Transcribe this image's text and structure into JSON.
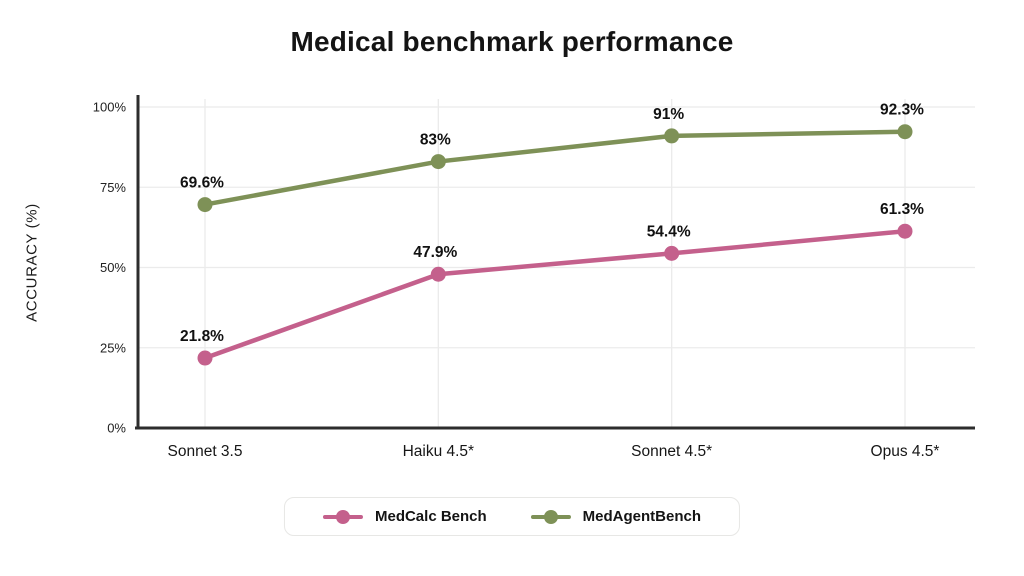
{
  "title": "Medical benchmark performance",
  "chart_data": {
    "type": "line",
    "title": "Medical benchmark performance",
    "categories": [
      "Sonnet 3.5",
      "Haiku 4.5*",
      "Sonnet 4.5*",
      "Opus 4.5*"
    ],
    "series": [
      {
        "name": "MedCalc Bench",
        "color": "#c4608c",
        "values": [
          21.8,
          47.9,
          54.4,
          61.3
        ],
        "point_labels": [
          "21.8%",
          "47.9%",
          "54.4%",
          "61.3%"
        ]
      },
      {
        "name": "MedAgentBench",
        "color": "#7e9157",
        "values": [
          69.6,
          83,
          91,
          92.3
        ],
        "point_labels": [
          "69.6%",
          "83%",
          "91%",
          "92.3%"
        ]
      }
    ],
    "xlabel": "",
    "ylabel": "ACCURACY (%)",
    "ylim": [
      0,
      100
    ],
    "yticks": [
      0,
      25,
      50,
      75,
      100
    ],
    "ytick_labels": [
      "0%",
      "25%",
      "50%",
      "75%",
      "100%"
    ],
    "grid": true,
    "legend_position": "bottom"
  },
  "colors": {
    "axis": "#2d2d2d",
    "grid": "#ebebeb",
    "tick_text": "#222222",
    "category_text": "#161616",
    "point_label_text": "#111111",
    "background": "#ffffff"
  }
}
